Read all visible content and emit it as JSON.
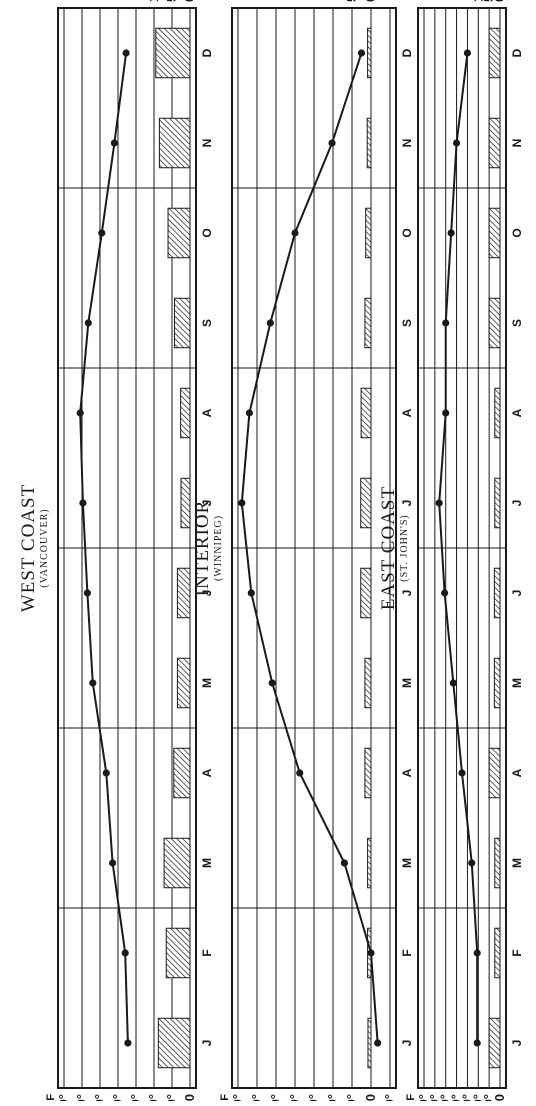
{
  "chart_data": [
    {
      "type": "line",
      "title": "WEST COAST",
      "subtitle": "(VANCOUVER)",
      "temp_unit_label": "F",
      "categories": [
        "J",
        "F",
        "M",
        "A",
        "M",
        "J",
        "J",
        "A",
        "S",
        "O",
        "N",
        "D"
      ],
      "temp_ylim": [
        0,
        70
      ],
      "temp_ticks": [
        "0",
        "10°",
        "20°",
        "30°",
        "40°",
        "50°",
        "60°",
        "70°"
      ],
      "precip_ylim": [
        0,
        10
      ],
      "precip_ticks": [
        "0",
        "5'",
        "10'"
      ],
      "series": [
        {
          "values": [
            34.5,
            36,
            43,
            46.5,
            54,
            57,
            59.5,
            61,
            56.5,
            49,
            42,
            35.5
          ]
        },
        {
          "type": "bar",
          "values": [
            8.8,
            6.6,
            7.2,
            4.5,
            3.5,
            3.5,
            2.5,
            2.6,
            4.3,
            6.1,
            8.5,
            9.5
          ]
        }
      ],
      "grid": true
    },
    {
      "type": "line",
      "title": "INTERIOR",
      "subtitle": "(WINNIPEG)",
      "temp_unit_label": "F",
      "categories": [
        "J",
        "F",
        "M",
        "A",
        "M",
        "J",
        "J",
        "A",
        "S",
        "O",
        "N",
        "D"
      ],
      "temp_ylim": [
        -10,
        70
      ],
      "temp_ticks": [
        "-10°",
        "0",
        "10°",
        "20°",
        "30°",
        "40°",
        "50°",
        "60°",
        "70°"
      ],
      "precip_ylim": [
        0,
        5
      ],
      "precip_ticks": [
        "0",
        "5'"
      ],
      "series": [
        {
          "values": [
            -3.5,
            0,
            14,
            37.5,
            52,
            63,
            68,
            64,
            53,
            40,
            20.5,
            5
          ]
        },
        {
          "type": "bar",
          "values": [
            0.8,
            0.9,
            0.9,
            1.6,
            1.6,
            2.7,
            2.7,
            2.6,
            1.6,
            1.4,
            1.0,
            0.9
          ]
        }
      ],
      "grid": true
    },
    {
      "type": "line",
      "title": "EAST COAST",
      "subtitle": "(ST. JOHN'S)",
      "temp_unit_label": "F",
      "categories": [
        "J",
        "F",
        "M",
        "A",
        "M",
        "J",
        "J",
        "A",
        "S",
        "O",
        "N",
        "D"
      ],
      "temp_ylim": [
        0,
        70
      ],
      "temp_ticks": [
        "0",
        "10°",
        "20°",
        "30°",
        "40°",
        "50°",
        "60°",
        "70°"
      ],
      "precip_ylim": [
        0,
        10
      ],
      "precip_ticks": [
        "0",
        "5'",
        "10'"
      ],
      "series": [
        {
          "values": [
            21,
            21,
            26,
            35,
            43,
            51,
            56,
            50,
            50,
            45,
            40,
            30
          ]
        },
        {
          "type": "bar",
          "values": [
            5.0,
            2.4,
            2.4,
            5.0,
            2.6,
            2.6,
            2.4,
            2.4,
            5.0,
            5.0,
            5.0,
            5.0
          ]
        }
      ],
      "grid": true
    }
  ]
}
